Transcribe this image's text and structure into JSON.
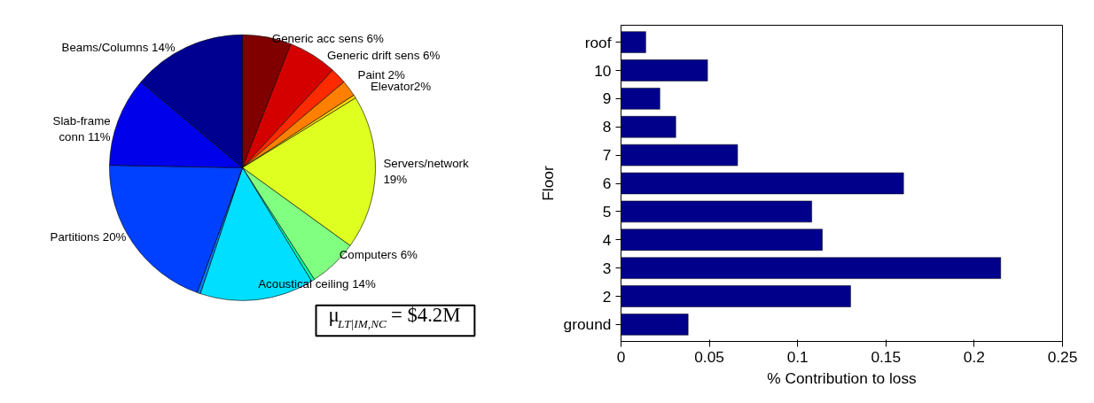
{
  "chart_data": [
    {
      "type": "pie",
      "categories": [
        "Generic acc sens 6%",
        "Generic drift sens 6%",
        "Paint 2%",
        "Elevator2%",
        null,
        "Servers/network\n19%",
        "Computers 6%",
        null,
        "Acoustical ceiling 14%",
        null,
        "Partitions 20%",
        "Slab-frame\nconn 11%",
        "Beams/Columns 14%"
      ],
      "values": [
        6,
        6,
        2,
        2,
        0.4,
        19,
        6,
        0.4,
        14,
        0.4,
        20,
        11,
        14
      ],
      "colors": [
        "#800000",
        "#d40000",
        "#ff2a00",
        "#ff8000",
        "#ffd400",
        "#dfff20",
        "#80ff80",
        "#00ffaa",
        "#00dfff",
        "#0080ff",
        "#0040ff",
        "#0000ea",
        "#000090"
      ],
      "annotations": [
        "μ$_{LT|IM,NC}$ = $4.2M"
      ]
    },
    {
      "type": "bar",
      "orientation": "horizontal",
      "categories": [
        "roof",
        "10",
        "9",
        "8",
        "7",
        "6",
        "5",
        "4",
        "3",
        "2",
        "ground"
      ],
      "values": [
        0.014,
        0.049,
        0.022,
        0.031,
        0.066,
        0.16,
        0.108,
        0.114,
        0.215,
        0.13,
        0.038
      ],
      "color": "#00008b",
      "xlim": [
        0,
        0.25
      ],
      "xticks": [
        0,
        0.05,
        0.1,
        0.15,
        0.2,
        0.25
      ],
      "xlabel": "% Contribution to loss",
      "ylabel": "Floor",
      "grid": false
    }
  ]
}
